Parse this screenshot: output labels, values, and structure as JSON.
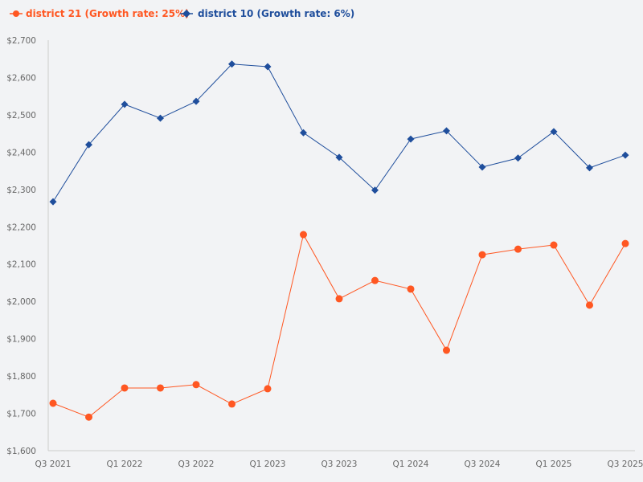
{
  "chart_data": {
    "type": "line",
    "title": "",
    "xlabel": "",
    "ylabel": "",
    "ylim": [
      1600,
      2700
    ],
    "yticks": [
      "$1,600",
      "$1,700",
      "$1,800",
      "$1,900",
      "$2,000",
      "$2,100",
      "$2,200",
      "$2,300",
      "$2,400",
      "$2,500",
      "$2,600",
      "$2,700"
    ],
    "ytick_values": [
      1600,
      1700,
      1800,
      1900,
      2000,
      2100,
      2200,
      2300,
      2400,
      2500,
      2600,
      2700
    ],
    "categories": [
      "Q3 2021",
      "Q4 2021",
      "Q1 2022",
      "Q2 2022",
      "Q3 2022",
      "Q4 2022",
      "Q1 2023",
      "Q2 2023",
      "Q3 2023",
      "Q4 2023",
      "Q1 2024",
      "Q2 2024",
      "Q3 2024",
      "Q4 2024",
      "Q1 2025",
      "Q2 2025",
      "Q3 2025"
    ],
    "xtick_labels": [
      "Q3 2021",
      "",
      "Q1 2022",
      "",
      "Q3 2022",
      "",
      "Q1 2023",
      "",
      "Q3 2023",
      "",
      "Q1 2024",
      "",
      "Q3 2024",
      "",
      "Q1 2025",
      "",
      "Q3 2025"
    ],
    "grid": false,
    "legend_position": "top-left",
    "series": [
      {
        "name": "district 21 (Growth rate: 25%)",
        "color": "#ff5722",
        "marker": "circle",
        "values": [
          1727,
          1690,
          1768,
          1768,
          1777,
          1725,
          1766,
          2179,
          2007,
          2056,
          2033,
          1869,
          2125,
          2140,
          2151,
          1990,
          2155
        ]
      },
      {
        "name": "district 10 (Growth rate: 6%)",
        "color": "#1f4e9c",
        "marker": "diamond",
        "values": [
          2267,
          2420,
          2528,
          2491,
          2536,
          2636,
          2629,
          2452,
          2386,
          2298,
          2435,
          2457,
          2360,
          2384,
          2455,
          2358,
          2392
        ]
      }
    ]
  }
}
